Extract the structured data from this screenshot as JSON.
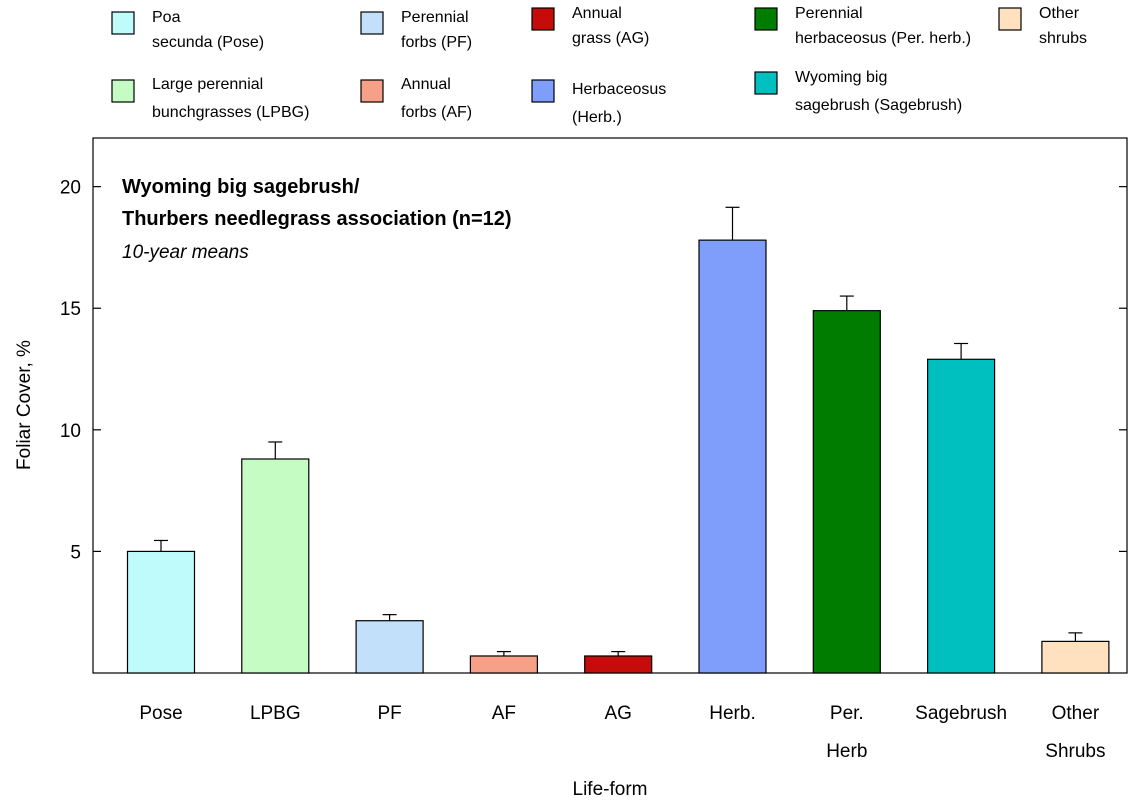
{
  "chart_data": {
    "type": "bar",
    "xlabel": "Life-form",
    "ylabel": "Foliar Cover, %",
    "ylim": [
      0,
      22
    ],
    "yticks": [
      5,
      10,
      15,
      20
    ],
    "grid": false,
    "legend_position": "top",
    "annotation": {
      "title_line1": "Wyoming big sagebrush/",
      "title_line2": "Thurbers needlegrass association (n=12)",
      "subtitle": "10-year means"
    },
    "categories": [
      [
        "Pose"
      ],
      [
        "LPBG"
      ],
      [
        "PF"
      ],
      [
        "AF"
      ],
      [
        "AG"
      ],
      [
        "Herb."
      ],
      [
        "Per.",
        "Herb"
      ],
      [
        "Sagebrush"
      ],
      [
        "Other",
        "Shrubs"
      ]
    ],
    "values": [
      5.0,
      8.8,
      2.15,
      0.7,
      0.7,
      17.8,
      14.9,
      12.9,
      1.3
    ],
    "errors": [
      0.45,
      0.7,
      0.25,
      0.18,
      0.18,
      1.35,
      0.6,
      0.65,
      0.35
    ],
    "colors": [
      "#c0fbfb",
      "#c4fcc4",
      "#c2e0fa",
      "#f6a088",
      "#c60b0b",
      "#7f9efb",
      "#007d00",
      "#00bfbf",
      "#ffe1c0"
    ],
    "legend": [
      {
        "lines": [
          "Poa",
          "secunda (Pose)"
        ],
        "color": "#c0fbfb"
      },
      {
        "lines": [
          "Perennial",
          "forbs (PF)"
        ],
        "color": "#c2e0fa"
      },
      {
        "lines": [
          "Annual",
          "grass (AG)"
        ],
        "color": "#c60b0b"
      },
      {
        "lines": [
          "Perennial",
          "herbaceosus (Per. herb.)"
        ],
        "color": "#007d00"
      },
      {
        "lines": [
          "Other",
          "shrubs"
        ],
        "color": "#ffe1c0"
      },
      {
        "lines": [
          "Large perennial",
          "bunchgrasses (LPBG)"
        ],
        "color": "#c4fcc4"
      },
      {
        "lines": [
          "Annual",
          "forbs (AF)"
        ],
        "color": "#f6a088"
      },
      {
        "lines": [
          "Herbaceosus",
          "(Herb.)"
        ],
        "color": "#7f9efb"
      },
      {
        "lines": [
          "Wyoming big",
          "sagebrush (Sagebrush)"
        ],
        "color": "#00bfbf"
      }
    ]
  }
}
